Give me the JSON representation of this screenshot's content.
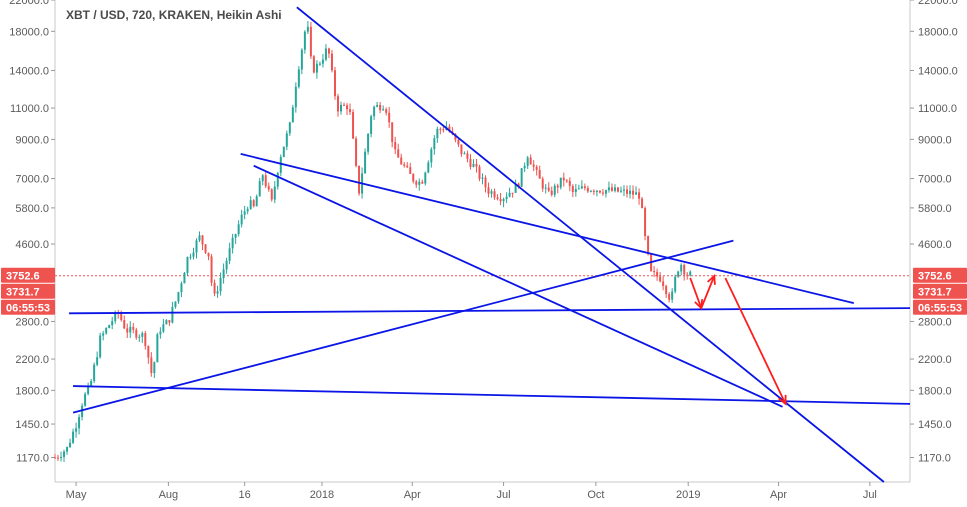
{
  "chart_data": {
    "type": "candlestick",
    "title": "XBT / USD, 720, KRAKEN, Heikin Ashi",
    "y_scale": "log",
    "ylim": [
      1000,
      22000
    ],
    "y_ticks": [
      22000,
      18000,
      14000,
      11000,
      9000,
      7000,
      5800,
      4600,
      2800,
      2200,
      1800,
      1450,
      1170
    ],
    "y_tick_labels": [
      "22000.0",
      "18000.0",
      "14000.0",
      "11000.0",
      "9000.0",
      "7000.0",
      "5800.0",
      "4600.0",
      "2800.0",
      "2200.0",
      "1800.0",
      "1450.0",
      "1170.0"
    ],
    "x_ticks": [
      "May",
      "Aug",
      "16",
      "2018",
      "Apr",
      "Jul",
      "Oct",
      "2019",
      "Apr",
      "Jul"
    ],
    "x_tick_dates": [
      "2017-05-01",
      "2017-08-01",
      "2017-10-16",
      "2018-01-01",
      "2018-04-01",
      "2018-07-01",
      "2018-10-01",
      "2019-01-01",
      "2019-04-01",
      "2019-07-01"
    ],
    "x_range": [
      "2017-04-10",
      "2019-08-10"
    ],
    "grid": false,
    "price_badges": [
      {
        "label": "3752.6",
        "value": 3752.6
      },
      {
        "label": "3731.7",
        "value": 3731.7
      },
      {
        "label": "06:55:53",
        "value": 3150
      }
    ],
    "current_price_line": 3752.6,
    "price_path": [
      [
        "2017-04-10",
        1170
      ],
      [
        "2017-04-22",
        1240
      ],
      [
        "2017-05-01",
        1450
      ],
      [
        "2017-05-08",
        1700
      ],
      [
        "2017-05-15",
        1850
      ],
      [
        "2017-05-25",
        2500
      ],
      [
        "2017-06-05",
        2800
      ],
      [
        "2017-06-12",
        2950
      ],
      [
        "2017-06-20",
        2650
      ],
      [
        "2017-06-30",
        2600
      ],
      [
        "2017-07-08",
        2550
      ],
      [
        "2017-07-16",
        1950
      ],
      [
        "2017-07-22",
        2650
      ],
      [
        "2017-08-01",
        2800
      ],
      [
        "2017-08-10",
        3300
      ],
      [
        "2017-08-20",
        4200
      ],
      [
        "2017-09-01",
        4800
      ],
      [
        "2017-09-10",
        4300
      ],
      [
        "2017-09-15",
        3200
      ],
      [
        "2017-09-22",
        3700
      ],
      [
        "2017-10-01",
        4400
      ],
      [
        "2017-10-12",
        5400
      ],
      [
        "2017-10-20",
        6000
      ],
      [
        "2017-10-25",
        5800
      ],
      [
        "2017-11-03",
        7200
      ],
      [
        "2017-11-12",
        6000
      ],
      [
        "2017-11-20",
        8000
      ],
      [
        "2017-11-30",
        9800
      ],
      [
        "2017-12-07",
        13500
      ],
      [
        "2017-12-17",
        19300
      ],
      [
        "2017-12-22",
        14000
      ],
      [
        "2017-12-28",
        14500
      ],
      [
        "2018-01-07",
        16200
      ],
      [
        "2018-01-16",
        11000
      ],
      [
        "2018-01-28",
        11200
      ],
      [
        "2018-02-05",
        7000
      ],
      [
        "2018-02-06",
        6200
      ],
      [
        "2018-02-20",
        11000
      ],
      [
        "2018-03-05",
        11300
      ],
      [
        "2018-03-15",
        8200
      ],
      [
        "2018-04-01",
        7000
      ],
      [
        "2018-04-10",
        6800
      ],
      [
        "2018-04-25",
        9500
      ],
      [
        "2018-05-05",
        9800
      ],
      [
        "2018-05-20",
        8300
      ],
      [
        "2018-06-01",
        7600
      ],
      [
        "2018-06-15",
        6500
      ],
      [
        "2018-06-30",
        6200
      ],
      [
        "2018-07-15",
        6700
      ],
      [
        "2018-07-25",
        8200
      ],
      [
        "2018-08-05",
        7000
      ],
      [
        "2018-08-15",
        6300
      ],
      [
        "2018-08-30",
        7000
      ],
      [
        "2018-09-08",
        6400
      ],
      [
        "2018-09-20",
        6600
      ],
      [
        "2018-10-10",
        6500
      ],
      [
        "2018-11-01",
        6400
      ],
      [
        "2018-11-14",
        6300
      ],
      [
        "2018-11-20",
        4500
      ],
      [
        "2018-11-25",
        3800
      ],
      [
        "2018-12-05",
        3700
      ],
      [
        "2018-12-15",
        3200
      ],
      [
        "2018-12-20",
        3800
      ],
      [
        "2018-12-24",
        4100
      ],
      [
        "2018-12-30",
        3800
      ],
      [
        "2019-01-05",
        3752.6
      ]
    ],
    "trend_lines": [
      {
        "name": "upper-resistance",
        "from": [
          "2017-12-07",
          21000
        ],
        "to": [
          "2019-07-15",
          1000
        ]
      },
      {
        "name": "middle-resistance",
        "from": [
          "2017-10-12",
          8200
        ],
        "to": [
          "2019-06-15",
          3150
        ]
      },
      {
        "name": "lower-resistance",
        "from": [
          "2017-10-25",
          7600
        ],
        "to": [
          "2019-04-05",
          1620
        ]
      },
      {
        "name": "rising-support",
        "from": [
          "2017-04-28",
          1560
        ],
        "to": [
          "2019-02-15",
          4700
        ]
      },
      {
        "name": "horizontal-upper-support",
        "from": [
          "2017-04-24",
          2950
        ],
        "to": [
          "2019-08-10",
          3050
        ]
      },
      {
        "name": "horizontal-lower-support",
        "from": [
          "2017-04-28",
          1850
        ],
        "to": [
          "2019-08-10",
          1650
        ]
      }
    ],
    "projection_arrows": [
      {
        "from": [
          "2019-01-03",
          3700
        ],
        "to": [
          "2019-01-14",
          3050
        ]
      },
      {
        "from": [
          "2019-01-14",
          3050
        ],
        "to": [
          "2019-01-27",
          3750
        ]
      },
      {
        "from": [
          "2019-02-07",
          3700
        ],
        "to": [
          "2019-04-08",
          1650
        ]
      }
    ],
    "colors": {
      "up": "#26a69a",
      "down": "#ef5350",
      "trendline": "#0a15e6",
      "arrow": "#ff1e1e",
      "badge": "#ef5350",
      "axis_text": "#5b5b5b",
      "price_line": "#ef5350"
    }
  }
}
